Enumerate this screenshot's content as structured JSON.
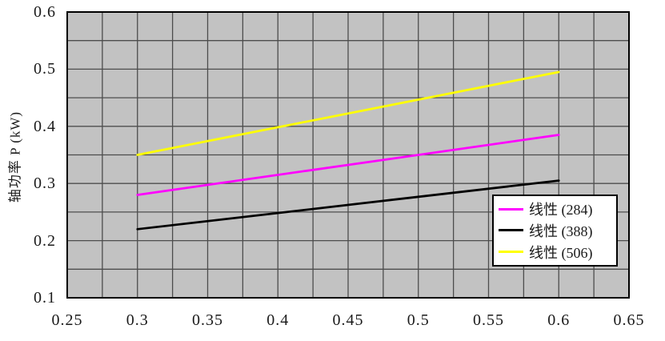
{
  "chart_data": {
    "type": "line",
    "title": "",
    "xlabel": "",
    "ylabel": "轴功率 P (kW)",
    "xlim": [
      0.25,
      0.65
    ],
    "ylim": [
      0.1,
      0.6
    ],
    "x_tick_values": [
      0.25,
      0.3,
      0.35,
      0.4,
      0.45,
      0.5,
      0.55,
      0.6,
      0.65
    ],
    "x_tick_labels": [
      "0.25",
      "0.3",
      "0.35",
      "0.4",
      "0.45",
      "0.5",
      "0.55",
      "0.6",
      "0.65"
    ],
    "y_tick_values": [
      0.1,
      0.2,
      0.3,
      0.4,
      0.5,
      0.6
    ],
    "y_tick_labels": [
      "0.1",
      "0.2",
      "0.3",
      "0.4",
      "0.5",
      "0.6"
    ],
    "x_grid_step": 0.025,
    "y_grid_step": 0.05,
    "grid": true,
    "plot_background": "#c2c2c2",
    "grid_color": "#4d4d4d",
    "border_color": "#000000",
    "legend_position": "inside lower right",
    "series": [
      {
        "name": "线性 (284)",
        "color": "#ff00ff",
        "x": [
          0.3,
          0.6
        ],
        "y": [
          0.28,
          0.385
        ]
      },
      {
        "name": "线性 (388)",
        "color": "#000000",
        "x": [
          0.3,
          0.6
        ],
        "y": [
          0.22,
          0.305
        ]
      },
      {
        "name": "线性 (506)",
        "color": "#ffff00",
        "x": [
          0.3,
          0.6
        ],
        "y": [
          0.35,
          0.495
        ]
      }
    ]
  }
}
